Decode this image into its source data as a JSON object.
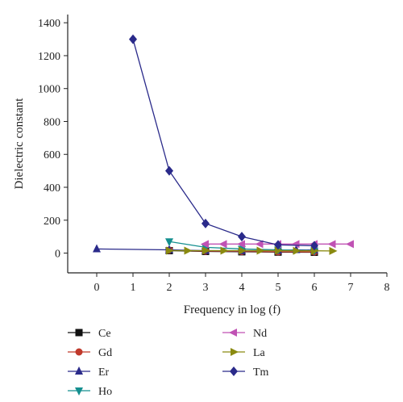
{
  "chart_data": {
    "type": "line",
    "xlabel": "Frequency in log (f)",
    "ylabel": "Dielectric constant",
    "xlim": [
      -0.8,
      8
    ],
    "ylim": [
      -120,
      1450
    ],
    "xticks": [
      0,
      1,
      2,
      3,
      4,
      5,
      6,
      7,
      8
    ],
    "yticks": [
      0,
      200,
      400,
      600,
      800,
      1000,
      1200,
      1400
    ],
    "grid": false,
    "legend_position": "bottom",
    "series": [
      {
        "name": "Ce",
        "color": "#111111",
        "marker": "square",
        "x": [
          2,
          3,
          4,
          5,
          6
        ],
        "y": [
          15,
          10,
          8,
          6,
          5
        ]
      },
      {
        "name": "Gd",
        "color": "#c0392b",
        "marker": "circle",
        "x": [
          2,
          3,
          4,
          5,
          6
        ],
        "y": [
          18,
          12,
          10,
          8,
          7
        ]
      },
      {
        "name": "Er",
        "color": "#2a2a8a",
        "marker": "triangle-up",
        "x": [
          0,
          2,
          3,
          4,
          5,
          5.5,
          6
        ],
        "y": [
          25,
          20,
          15,
          14,
          16,
          20,
          18
        ]
      },
      {
        "name": "Ho",
        "color": "#148f8f",
        "marker": "triangle-down",
        "x": [
          2,
          3,
          4,
          5,
          6
        ],
        "y": [
          70,
          35,
          25,
          20,
          15
        ]
      },
      {
        "name": "Nd",
        "color": "#c052b4",
        "marker": "triangle-left",
        "x": [
          3,
          3.5,
          4,
          4.5,
          5,
          5.5,
          6,
          6.5,
          7
        ],
        "y": [
          55,
          55,
          55,
          55,
          55,
          55,
          55,
          55,
          55
        ]
      },
      {
        "name": "La",
        "color": "#8a8a10",
        "marker": "triangle-right",
        "x": [
          2,
          2.5,
          3,
          3.5,
          4,
          4.5,
          5,
          5.5,
          6,
          6.5
        ],
        "y": [
          15,
          15,
          15,
          15,
          15,
          15,
          15,
          14,
          14,
          13
        ]
      },
      {
        "name": "Tm",
        "color": "#2a2a8a",
        "marker": "diamond",
        "x": [
          1,
          2,
          3,
          4,
          5,
          6
        ],
        "y": [
          1300,
          500,
          180,
          100,
          50,
          45
        ]
      }
    ]
  }
}
